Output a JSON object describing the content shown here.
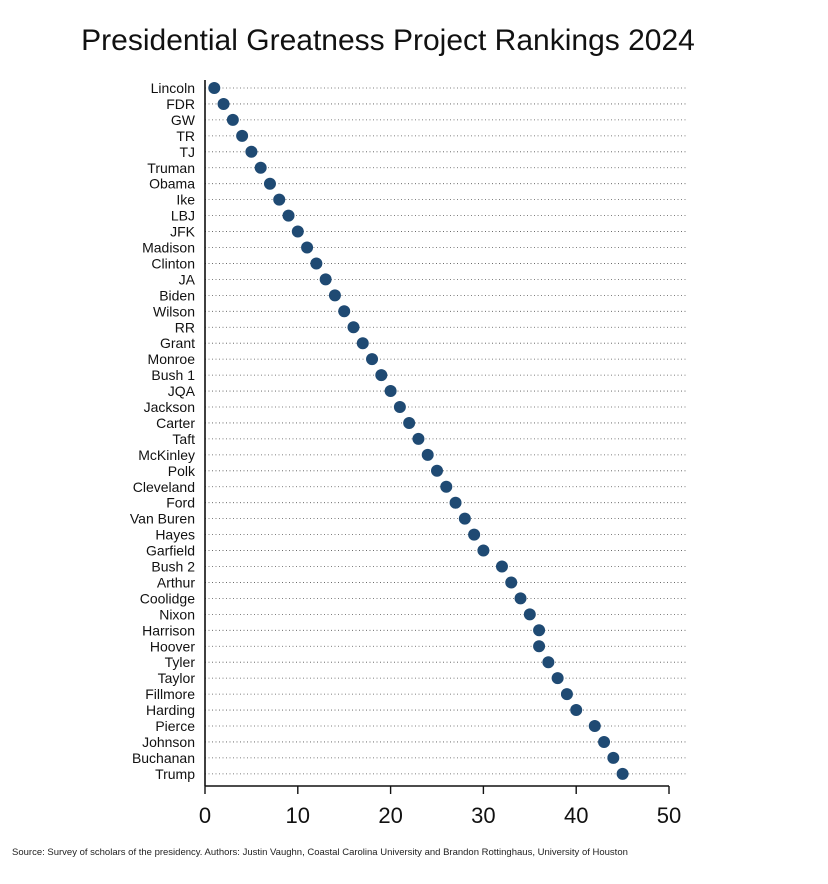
{
  "chart_data": {
    "type": "scatter",
    "title": "Presidential Greatness Project Rankings 2024",
    "xlabel": "",
    "ylabel": "",
    "xlim": [
      0,
      50
    ],
    "x_ticks": [
      "0",
      "10",
      "20",
      "30",
      "40",
      "50"
    ],
    "marker_color": "#1f4a73",
    "grid": "dotted horizontal",
    "categories": [
      "Lincoln",
      "FDR",
      "GW",
      "TR",
      "TJ",
      "Truman",
      "Obama",
      "Ike",
      "LBJ",
      "JFK",
      "Madison",
      "Clinton",
      "JA",
      "Biden",
      "Wilson",
      "RR",
      "Grant",
      "Monroe",
      "Bush 1",
      "JQA",
      "Jackson",
      "Carter",
      "Taft",
      "McKinley",
      "Polk",
      "Cleveland",
      "Ford",
      "Van Buren",
      "Hayes",
      "Garfield",
      "Bush 2",
      "Arthur",
      "Coolidge",
      "Nixon",
      "Harrison",
      "Hoover",
      "Tyler",
      "Taylor",
      "Fillmore",
      "Harding",
      "Pierce",
      "Johnson",
      "Buchanan",
      "Trump"
    ],
    "values": [
      1,
      2,
      3,
      4,
      5,
      6,
      7,
      8,
      9,
      10,
      11,
      12,
      13,
      14,
      15,
      16,
      17,
      18,
      19,
      20,
      21,
      22,
      23,
      24,
      25,
      26,
      27,
      28,
      29,
      30,
      32,
      33,
      34,
      35,
      36,
      36,
      37,
      38,
      39,
      40,
      42,
      43,
      44,
      45
    ]
  },
  "source": "Source: Survey of scholars of the presidency.  Authors: Justin Vaughn, Coastal Carolina University and Brandon Rottinghaus, University of Houston"
}
